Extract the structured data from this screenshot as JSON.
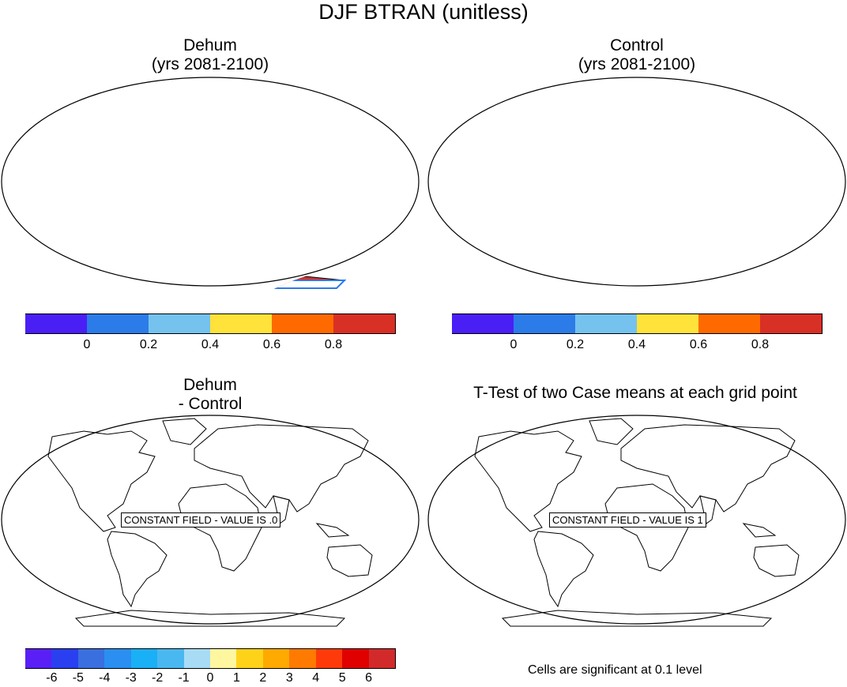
{
  "main_title": "DJF BTRAN (unitless)",
  "panels": [
    {
      "id": "dehum",
      "title_line1": "Dehum",
      "title_line2": "(yrs 2081-2100)"
    },
    {
      "id": "control",
      "title_line1": "Control",
      "title_line2": "(yrs 2081-2100)"
    },
    {
      "id": "diff",
      "title_line1": "Dehum",
      "title_line2": "- Control",
      "note": "CONSTANT FIELD - VALUE IS .0"
    },
    {
      "id": "ttest",
      "title_line1": "T-Test of two Case means at each grid point",
      "note": "CONSTANT FIELD - VALUE IS 1"
    }
  ],
  "colorbar_top": {
    "colors": [
      "#4a1ff5",
      "#2b7be8",
      "#75c2ef",
      "#ffe23a",
      "#ff6a00",
      "#d93025"
    ],
    "labels": [
      "0",
      "0.2",
      "0.4",
      "0.6",
      "0.8"
    ]
  },
  "colorbar_bottom": {
    "colors": [
      "#5a1ff5",
      "#2a3ff0",
      "#3a6fe0",
      "#2a8ff0",
      "#1ab0f5",
      "#4ab8f0",
      "#a8dcf5",
      "#fff6a0",
      "#ffd21a",
      "#ffaa00",
      "#ff7a00",
      "#ff3a0a",
      "#e00000",
      "#d22a2a"
    ],
    "labels": [
      "-6",
      "-5",
      "-4",
      "-3",
      "-2",
      "-1",
      "0",
      "1",
      "2",
      "3",
      "4",
      "5",
      "6"
    ]
  },
  "footnote": "Cells are significant at 0.1 level"
}
